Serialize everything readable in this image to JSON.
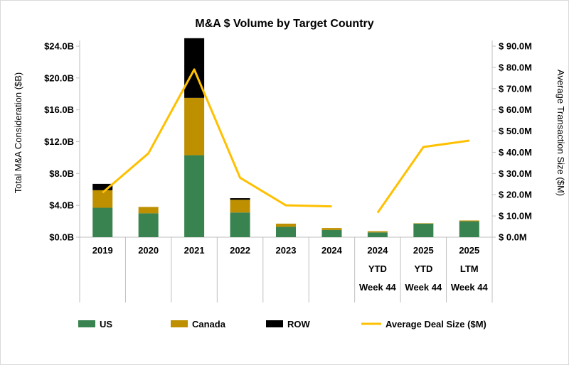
{
  "chart_data": {
    "type": "bar",
    "title": "M&A $ Volume by Target Country",
    "ylabel": "Total M&A Consideration ($B)",
    "y2label": "Average Transaction Size ($M)",
    "categories": [
      [
        "2019"
      ],
      [
        "2020"
      ],
      [
        "2021"
      ],
      [
        "2022"
      ],
      [
        "2023"
      ],
      [
        "2024"
      ],
      [
        "2024",
        "YTD",
        "Week 44"
      ],
      [
        "2025",
        "YTD",
        "Week 44"
      ],
      [
        "2025",
        "LTM",
        "Week 44"
      ]
    ],
    "ylim": [
      0,
      24
    ],
    "yticks": [
      "$0.0B",
      "$4.0B",
      "$8.0B",
      "$12.0B",
      "$16.0B",
      "$20.0B",
      "$24.0B"
    ],
    "y2lim": [
      0,
      90
    ],
    "y2ticks": [
      "$ 0.0M",
      "$ 10.0M",
      "$ 20.0M",
      "$ 30.0M",
      "$ 40.0M",
      "$ 50.0M",
      "$ 60.0M",
      "$ 70.0M",
      "$ 80.0M",
      "$ 90.0M"
    ],
    "series": [
      {
        "name": "US",
        "type": "bar",
        "stack": true,
        "color": "#38834F",
        "values": [
          3.7,
          3.0,
          10.3,
          3.1,
          1.3,
          0.9,
          0.6,
          1.7,
          2.0
        ]
      },
      {
        "name": "Canada",
        "type": "bar",
        "stack": true,
        "color": "#BE9000",
        "values": [
          2.2,
          0.8,
          7.2,
          1.6,
          0.4,
          0.25,
          0.15,
          0.05,
          0.1
        ]
      },
      {
        "name": "ROW",
        "type": "bar",
        "stack": true,
        "color": "#000000",
        "values": [
          0.8,
          0.0,
          7.5,
          0.2,
          0.0,
          0.0,
          0.0,
          0.0,
          0.0
        ]
      },
      {
        "name": "Average Deal Size ($M)",
        "type": "line",
        "axis": "right",
        "color": "#FFC000",
        "values": [
          21,
          39.5,
          79,
          28,
          15,
          14.5,
          null,
          42.5,
          45.5
        ],
        "segment_start": 11.5
      }
    ],
    "grid": false,
    "legend_position": "bottom"
  }
}
